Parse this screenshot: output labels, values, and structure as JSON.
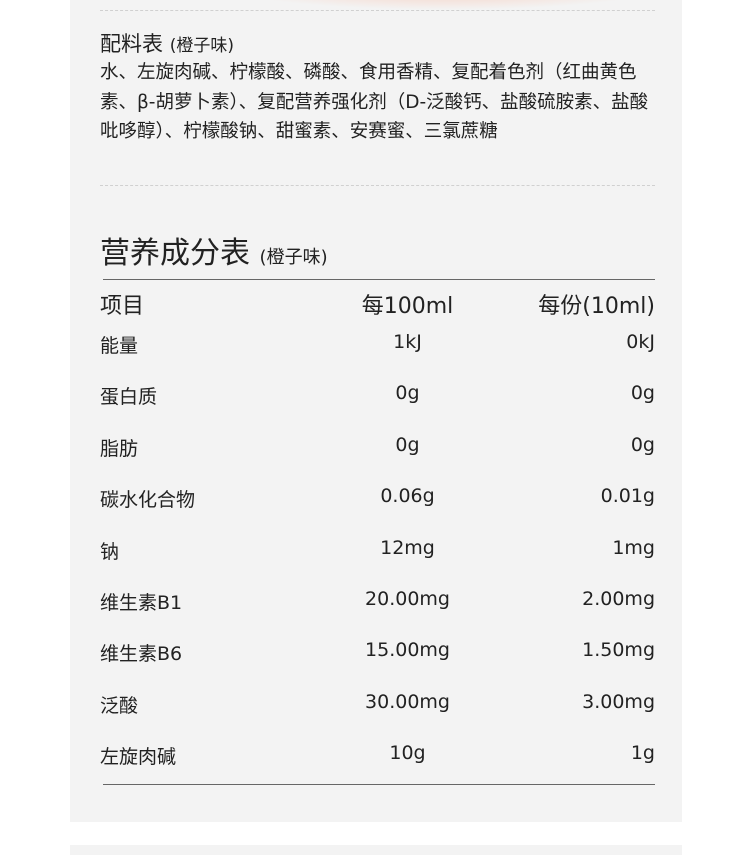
{
  "ingredients": {
    "title": "配料表",
    "flavor": "(橙子味)",
    "text": "水、左旋肉碱、柠檬酸、磷酸、食用香精、复配着色剂（红曲黄色素、β-胡萝卜素）、复配营养强化剂（D-泛酸钙、盐酸硫胺素、盐酸吡哆醇）、柠檬酸钠、甜蜜素、安赛蜜、三氯蔗糖"
  },
  "nutrition": {
    "title": "营养成分表",
    "flavor": "(橙子味)",
    "headers": [
      "项目",
      "每100ml",
      "每份(10ml)"
    ],
    "rows": [
      [
        "能量",
        "1kJ",
        "0kJ"
      ],
      [
        "蛋白质",
        "0g",
        "0g"
      ],
      [
        "脂肪",
        "0g",
        "0g"
      ],
      [
        "碳水化合物",
        "0.06g",
        "0.01g"
      ],
      [
        "钠",
        "12mg",
        "1mg"
      ],
      [
        "维生素B1",
        "20.00mg",
        "2.00mg"
      ],
      [
        "维生素B6",
        "15.00mg",
        "1.50mg"
      ],
      [
        "泛酸",
        "30.00mg",
        "3.00mg"
      ],
      [
        "左旋肉碱",
        "10g",
        "1g"
      ]
    ]
  }
}
